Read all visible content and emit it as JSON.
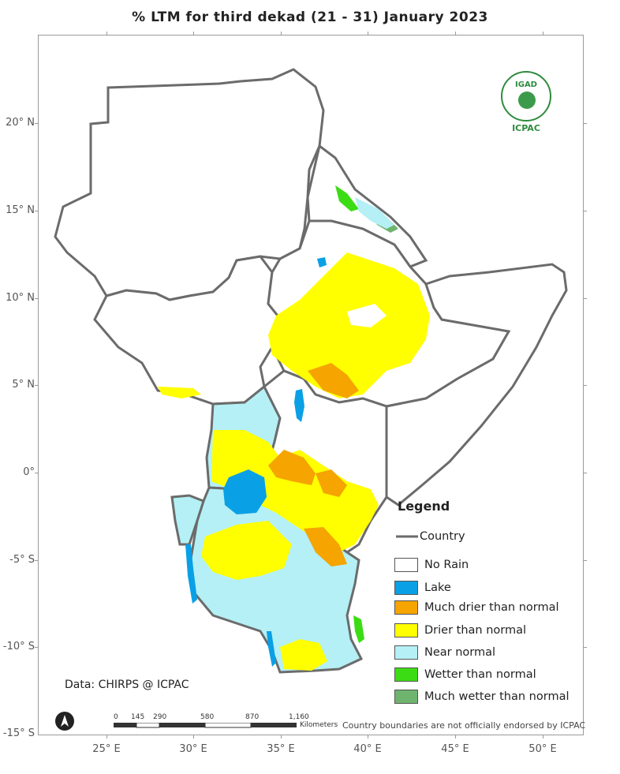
{
  "title": "% LTM    for third dekad (21 - 31) January 2023",
  "y_ticks": [
    "20° N",
    "15° N",
    "10° N",
    "5° N",
    "0°",
    "-5° S",
    "-10° S",
    "-15° S"
  ],
  "x_ticks": [
    "25° E",
    "30° E",
    "35° E",
    "40° E",
    "45° E",
    "50° E"
  ],
  "legend": {
    "title": "Legend",
    "country_label": "Country",
    "items": [
      {
        "label": "No Rain",
        "color": "#ffffff"
      },
      {
        "label": "Lake",
        "color": "#0aa0e6"
      },
      {
        "label": "Much drier than normal",
        "color": "#f5a400"
      },
      {
        "label": "Drier than normal",
        "color": "#ffff00"
      },
      {
        "label": "Near normal",
        "color": "#b4f0f5"
      },
      {
        "label": "Wetter than normal",
        "color": "#3cdc14"
      },
      {
        "label": "Much wetter than normal",
        "color": "#6eb46e"
      }
    ]
  },
  "credit": "Data: CHIRPS @ ICPAC",
  "disclaimer": "Country boundaries are not officially endorsed by ICPAC",
  "scalebar": {
    "labels": [
      "0",
      "145",
      "290",
      "580",
      "870",
      "1,160"
    ],
    "unit": "Kilometers"
  },
  "logo": {
    "top_text": "IGAD",
    "bottom_text": "ICPAC"
  },
  "colors": {
    "border": "#6b6b6b",
    "frame": "#9a9a9a"
  }
}
